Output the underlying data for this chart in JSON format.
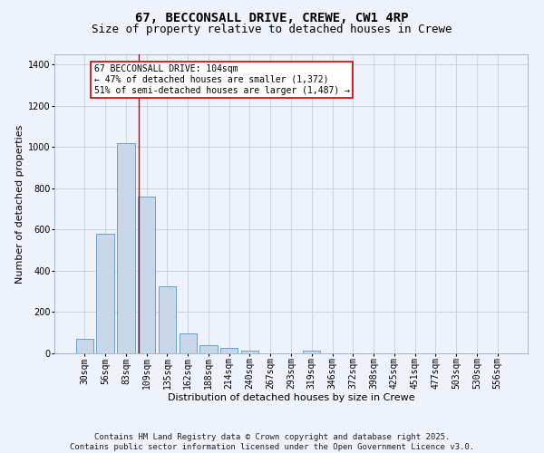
{
  "title_line1": "67, BECCONSALL DRIVE, CREWE, CW1 4RP",
  "title_line2": "Size of property relative to detached houses in Crewe",
  "xlabel": "Distribution of detached houses by size in Crewe",
  "ylabel": "Number of detached properties",
  "categories": [
    "30sqm",
    "56sqm",
    "83sqm",
    "109sqm",
    "135sqm",
    "162sqm",
    "188sqm",
    "214sqm",
    "240sqm",
    "267sqm",
    "293sqm",
    "319sqm",
    "346sqm",
    "372sqm",
    "398sqm",
    "425sqm",
    "451sqm",
    "477sqm",
    "503sqm",
    "530sqm",
    "556sqm"
  ],
  "values": [
    70,
    580,
    1020,
    760,
    325,
    95,
    38,
    25,
    15,
    0,
    0,
    15,
    0,
    0,
    0,
    0,
    0,
    0,
    0,
    0,
    0
  ],
  "bar_color": "#c8d8ea",
  "bar_edge_color": "#6aa0c8",
  "background_color": "#eef2fa",
  "grid_color": "#c5cde0",
  "annotation_text": "67 BECCONSALL DRIVE: 104sqm\n← 47% of detached houses are smaller (1,372)\n51% of semi-detached houses are larger (1,487) →",
  "vline_x": 2.62,
  "annotation_box_color": "#ffffff",
  "annotation_border_color": "#cc0000",
  "ylim": [
    0,
    1450
  ],
  "yticks": [
    0,
    200,
    400,
    600,
    800,
    1000,
    1200,
    1400
  ],
  "footer_text": "Contains HM Land Registry data © Crown copyright and database right 2025.\nContains public sector information licensed under the Open Government Licence v3.0.",
  "title_fontsize": 10,
  "subtitle_fontsize": 9,
  "axis_label_fontsize": 8,
  "tick_fontsize": 7,
  "footer_fontsize": 6.5,
  "annot_fontsize": 7
}
